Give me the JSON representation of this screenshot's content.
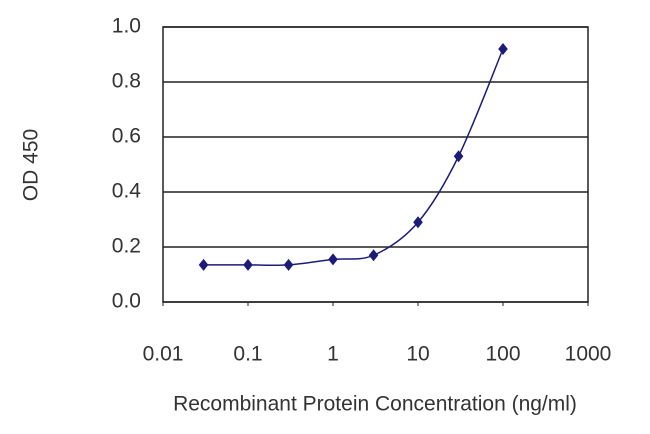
{
  "chart_data": {
    "type": "line",
    "x_label": "Recombinant Protein Concentration (ng/ml)",
    "y_label": "OD 450",
    "x": [
      0.03,
      0.1,
      0.3,
      1,
      3,
      10,
      30,
      100
    ],
    "series": [
      {
        "color": "#1c1c78",
        "values": [
          0.135,
          0.135,
          0.135,
          0.155,
          0.17,
          0.29,
          0.53,
          0.92
        ]
      }
    ],
    "xscale": "log",
    "xlim": [
      0.01,
      1000
    ],
    "xticks": [
      0.01,
      0.1,
      1,
      10,
      100,
      1000
    ],
    "ylim": [
      0,
      1
    ],
    "yticks": [
      {
        "value": 0,
        "label": "0.0"
      },
      0.2,
      0.4,
      0.6,
      0.8,
      {
        "value": 1,
        "label": "1.0"
      }
    ],
    "grid": true
  }
}
